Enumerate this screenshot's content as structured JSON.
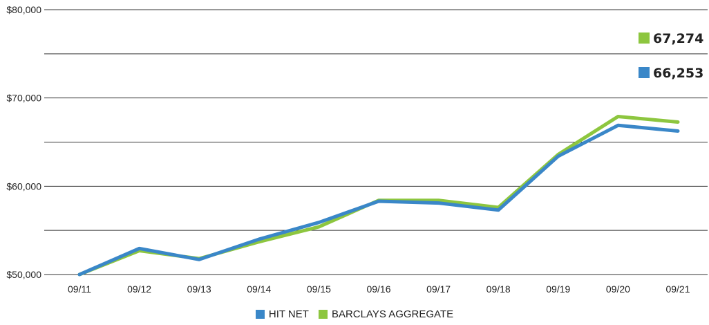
{
  "chart_data": {
    "type": "line",
    "categories": [
      "09/11",
      "09/12",
      "09/13",
      "09/14",
      "09/15",
      "09/16",
      "09/17",
      "09/18",
      "09/19",
      "09/20",
      "09/21"
    ],
    "series": [
      {
        "name": "BARCLAYS AGGREGATE",
        "color": "#8dc63f",
        "values": [
          50000,
          52700,
          51800,
          53700,
          55400,
          58400,
          58400,
          57600,
          63600,
          67900,
          67274
        ],
        "end_label": "67,274"
      },
      {
        "name": "HIT NET",
        "color": "#3a87c8",
        "values": [
          50000,
          52950,
          51700,
          54000,
          55900,
          58300,
          58100,
          57300,
          63400,
          66900,
          66253
        ],
        "end_label": "66,253"
      }
    ],
    "y_ticks": [
      50000,
      55000,
      60000,
      65000,
      70000,
      75000,
      80000
    ],
    "y_tick_labels": [
      "$50,000",
      "",
      "$60,000",
      "",
      "$70,000",
      "",
      "$80,000"
    ],
    "ylim": [
      50000,
      80000
    ],
    "grid": true,
    "legend_position": "bottom",
    "legend": [
      {
        "label": "HIT NET",
        "color": "#3a87c8"
      },
      {
        "label": "BARCLAYS AGGREGATE",
        "color": "#8dc63f"
      }
    ]
  }
}
